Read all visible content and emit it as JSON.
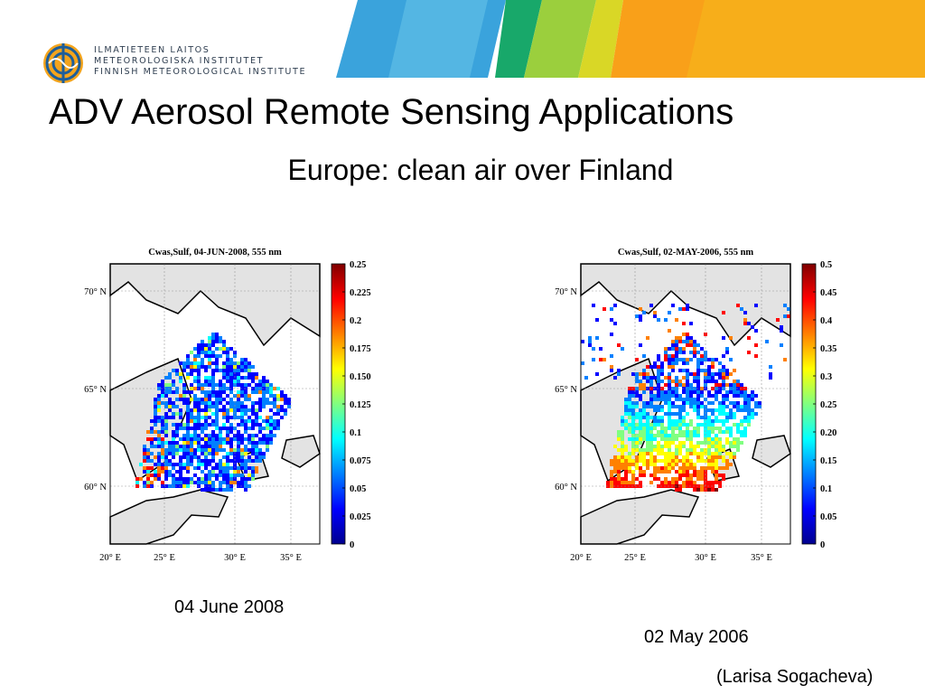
{
  "logo": {
    "lines": [
      "ILMATIETEEN LAITOS",
      "METEOROLOGISKA INSTITUTET",
      "FINNISH METEOROLOGICAL INSTITUTE"
    ]
  },
  "slide": {
    "title": "ADV Aerosol Remote Sensing Applications",
    "subtitle": "Europe: clean air over Finland",
    "credit": "(Larisa Sogacheva)"
  },
  "maps": [
    {
      "title": "Cwas,Sulf,  04-JUN-2008, 555 nm",
      "lat_labels": [
        "70",
        "65",
        "60"
      ],
      "lat_suffix": "N",
      "lon_labels": [
        "20",
        "25",
        "30",
        "35"
      ],
      "lon_suffix": "E",
      "colorbar": [
        "0.25",
        "0.225",
        "0.2",
        "0.175",
        "0.150",
        "0.125",
        "0.1",
        "0.075",
        "0.05",
        "0.025",
        "0"
      ],
      "caption": "04 June 2008"
    },
    {
      "title": "Cwas,Sulf,  02-MAY-2006, 555 nm",
      "lat_labels": [
        "70",
        "65",
        "60"
      ],
      "lat_suffix": "N",
      "lon_labels": [
        "20",
        "25",
        "30",
        "35"
      ],
      "lon_suffix": "E",
      "colorbar": [
        "0.5",
        "0.45",
        "0.4",
        "0.35",
        "0.3",
        "0.25",
        "0.20",
        "0.15",
        "0.1",
        "0.05",
        "0"
      ],
      "caption": "02 May 2006"
    }
  ],
  "colors": {
    "banner": [
      "#3aa3dc",
      "#60bde6",
      "#18a86a",
      "#9bcf3d",
      "#d9d726",
      "#f6b21a",
      "#f9a019"
    ],
    "colormap": [
      "#00008f",
      "#0000ff",
      "#0080ff",
      "#00ffff",
      "#80ff80",
      "#ffff00",
      "#ff8000",
      "#ff0000",
      "#800000"
    ],
    "land": "#e3e3e3"
  }
}
